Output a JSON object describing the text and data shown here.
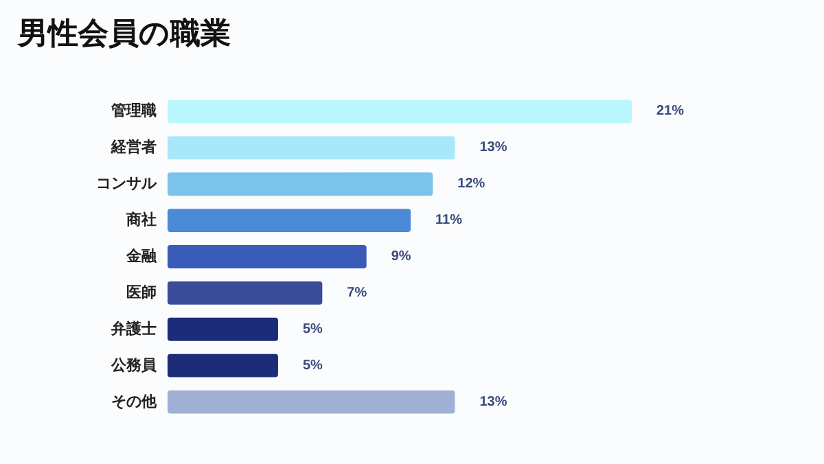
{
  "chart_data": {
    "type": "bar",
    "orientation": "horizontal",
    "title": "男性会員の職業",
    "categories": [
      "管理職",
      "経営者",
      "コンサル",
      "商社",
      "金融",
      "医師",
      "弁護士",
      "公務員",
      "その他"
    ],
    "values": [
      21,
      13,
      12,
      11,
      9,
      7,
      5,
      5,
      13
    ],
    "colors": [
      "#b9f7fc",
      "#a8e8f8",
      "#7ac4ec",
      "#4a8ad8",
      "#3a5cb8",
      "#3a4c98",
      "#1c2c78",
      "#1c2c78",
      "#a0b0d4"
    ],
    "value_labels": [
      "21%",
      "13%",
      "12%",
      "11%",
      "9%",
      "7%",
      "5%",
      "5%",
      "13%"
    ]
  }
}
